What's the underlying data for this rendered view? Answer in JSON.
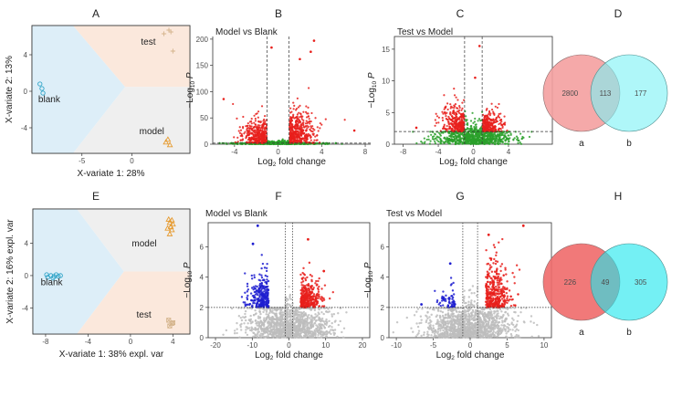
{
  "panel_labels": [
    "A",
    "B",
    "C",
    "D",
    "E",
    "F",
    "G",
    "H"
  ],
  "colors": {
    "blank": "#2fa4c8",
    "test": "#d4b48c",
    "model": "#e69a2e",
    "region_blue": "#ddeef8",
    "region_orange": "#fbe8dc",
    "region_grey": "#efefef",
    "up_red": "#e8201c",
    "ns_green": "#2aa02a",
    "down_blue": "#1f1fd0",
    "ns_grey": "#bdbdbd",
    "venn_d_left": "#f4a0a0",
    "venn_d_right": "#7ef2f6",
    "venn_h_left": "#f06a6a",
    "venn_h_right": "#1ee6ee"
  },
  "chart_data": [
    {
      "id": "A",
      "type": "scatter",
      "title": "",
      "xlabel": "X-variate 1: 28%",
      "ylabel": "X-variate 2: 13%",
      "xlim": [
        -10,
        5.8
      ],
      "ylim": [
        -6.8,
        7.2
      ],
      "xticks": [
        -5,
        0
      ],
      "yticks": [
        -4,
        0,
        4
      ],
      "series": [
        {
          "name": "blank",
          "marker": "circle",
          "x": [
            -9.2,
            -9.0,
            -8.9
          ],
          "y": [
            0.8,
            0.3,
            -0.2
          ]
        },
        {
          "name": "test",
          "marker": "plus",
          "x": [
            3.2,
            3.7,
            4.1,
            3.9
          ],
          "y": [
            6.3,
            6.7,
            4.4,
            6.5
          ]
        },
        {
          "name": "model",
          "marker": "triangle",
          "x": [
            3.4,
            3.8,
            3.6
          ],
          "y": [
            -5.6,
            -5.9,
            -5.3
          ]
        }
      ],
      "annotations": [
        "blank",
        "test",
        "model"
      ]
    },
    {
      "id": "B",
      "type": "scatter",
      "title": "Model vs Blank",
      "xlabel": "Log2 fold change",
      "ylabel": "-Log10 P",
      "xlim": [
        -6,
        8.5
      ],
      "ylim": [
        0,
        205
      ],
      "xticks": [
        -4,
        0,
        4,
        8
      ],
      "yticks": [
        0,
        50,
        100,
        150,
        200
      ],
      "ytick_labels": [
        "0",
        "50",
        "100",
        "150",
        "200"
      ],
      "vlines": [
        -1,
        1
      ],
      "hline": 2,
      "highlight_points": [
        {
          "x": 3.3,
          "y": 197
        },
        {
          "x": 3.0,
          "y": 176
        },
        {
          "x": -5.0,
          "y": 86
        },
        {
          "x": 2.0,
          "y": 162
        },
        {
          "x": -0.6,
          "y": 184
        },
        {
          "x": 7.0,
          "y": 26
        }
      ]
    },
    {
      "id": "C",
      "type": "scatter",
      "title": "Test vs Model",
      "xlabel": "Log2 fold change",
      "ylabel": "-Log10 P",
      "xlim": [
        -9,
        9
      ],
      "ylim": [
        0,
        17
      ],
      "xticks": [
        -8,
        -4,
        0,
        4
      ],
      "yticks": [
        0,
        5,
        10,
        15
      ],
      "vlines": [
        -1,
        1
      ],
      "hline": 2,
      "highlight_points": [
        {
          "x": 0.7,
          "y": 15.5
        },
        {
          "x": 0.2,
          "y": 10.5
        },
        {
          "x": -3.2,
          "y": 5.8
        },
        {
          "x": -6.5,
          "y": 2.6
        },
        {
          "x": 3.5,
          "y": 3.2
        }
      ]
    },
    {
      "id": "D",
      "type": "venn",
      "sets": [
        "a",
        "b"
      ],
      "values": {
        "a_only": 2800,
        "both": 113,
        "b_only": 177
      }
    },
    {
      "id": "E",
      "type": "scatter",
      "title": "",
      "xlabel": "X-variate 1: 38% expl. var",
      "ylabel": "X-variate 2: 16% expl. var",
      "xlim": [
        -9.2,
        5.6
      ],
      "ylim": [
        -7.2,
        8.2
      ],
      "xticks": [
        -8,
        -4,
        0,
        4
      ],
      "yticks": [
        -4,
        0,
        4
      ],
      "series": [
        {
          "name": "blank",
          "marker": "circle",
          "x": [
            -7.8,
            -7.5,
            -7.2,
            -7.0,
            -6.8,
            -7.9,
            -7.3,
            -6.6
          ],
          "y": [
            -0.2,
            0.0,
            -0.1,
            0.1,
            -0.1,
            0.1,
            -0.3,
            0.0
          ]
        },
        {
          "name": "model",
          "marker": "triangle",
          "x": [
            3.6,
            3.9,
            3.7,
            4.0,
            3.8,
            3.5,
            3.9,
            3.7
          ],
          "y": [
            6.9,
            6.8,
            6.5,
            6.3,
            6.0,
            5.8,
            5.6,
            5.1
          ]
        },
        {
          "name": "test",
          "marker": "square-cross",
          "x": [
            3.6,
            3.9,
            3.7,
            4.0
          ],
          "y": [
            -5.5,
            -5.9,
            -6.2,
            -5.8
          ]
        }
      ],
      "annotations": [
        "model",
        "blank",
        "test"
      ]
    },
    {
      "id": "F",
      "type": "scatter",
      "title": "Model vs Blank",
      "xlabel": "Log2 fold change",
      "ylabel": "-Log10 P",
      "xlim": [
        -22,
        22
      ],
      "ylim": [
        0,
        7.6
      ],
      "xticks": [
        -20,
        -10,
        0,
        10,
        20
      ],
      "yticks": [
        0,
        2,
        4,
        6
      ],
      "vlines": [
        -1,
        1
      ],
      "hline": 2,
      "highlight_points": [
        {
          "x": -8.5,
          "y": 7.4
        },
        {
          "x": -9.8,
          "y": 6.2
        },
        {
          "x": 5.2,
          "y": 6.5
        },
        {
          "x": 9.5,
          "y": 4.4
        }
      ]
    },
    {
      "id": "G",
      "type": "scatter",
      "title": "Test vs Model",
      "xlabel": "Log2 fold change",
      "ylabel": "-Log10 P",
      "xlim": [
        -11,
        11
      ],
      "ylim": [
        0,
        7.6
      ],
      "xticks": [
        -10,
        -5,
        0,
        5,
        10
      ],
      "yticks": [
        0,
        2,
        4,
        6
      ],
      "vlines": [
        -1,
        1
      ],
      "hline": 2,
      "highlight_points": [
        {
          "x": 7.2,
          "y": 7.4
        },
        {
          "x": 2.5,
          "y": 6.8
        },
        {
          "x": -2.7,
          "y": 4.9
        },
        {
          "x": -6.6,
          "y": 2.2
        }
      ]
    },
    {
      "id": "H",
      "type": "venn",
      "sets": [
        "a",
        "b"
      ],
      "values": {
        "a_only": 226,
        "both": 49,
        "b_only": 305
      }
    }
  ]
}
